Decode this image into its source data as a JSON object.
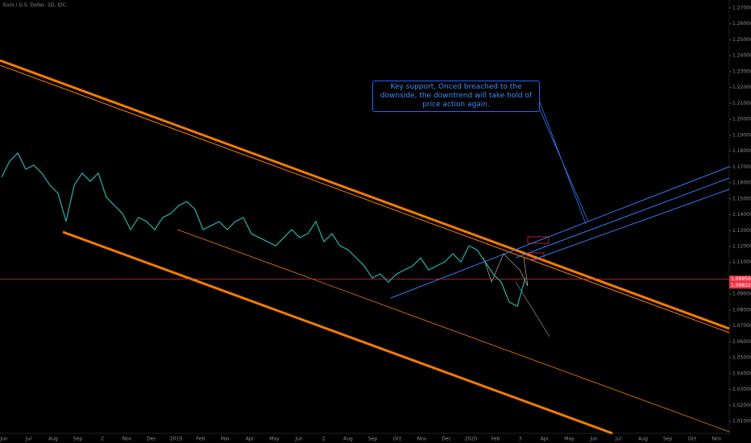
{
  "chart_data": {
    "type": "line",
    "title": "Euro / U.S. Dollar, 1D, IDC",
    "annotation": "Key support, Onced breached to the downside, the downtrend will take hold of price action again.",
    "x_axis_labels": [
      "Jun",
      "Jul",
      "Aug",
      "Sep",
      "2",
      "Nov",
      "Dec",
      "2019",
      "Feb",
      "Mar",
      "Apr",
      "May",
      "Jun",
      "2",
      "Aug",
      "Sep",
      "Oct",
      "Nov",
      "Dec",
      "2020",
      "Feb",
      "3",
      "Apr",
      "May",
      "Jun",
      "Jul",
      "Aug",
      "Sep",
      "Oct",
      "Nov"
    ],
    "series": [
      {
        "name": "EURUSD",
        "color": "#26a69a",
        "values": [
          1.1635,
          1.1737,
          1.1787,
          1.1686,
          1.1711,
          1.1661,
          1.1585,
          1.1534,
          1.1357,
          1.1585,
          1.1661,
          1.161,
          1.1661,
          1.1509,
          1.1458,
          1.1407,
          1.1306,
          1.1382,
          1.1357,
          1.1306,
          1.1382,
          1.1407,
          1.1458,
          1.1483,
          1.1433,
          1.1306,
          1.1331,
          1.1357,
          1.1306,
          1.1357,
          1.1382,
          1.128,
          1.1255,
          1.123,
          1.1204,
          1.1255,
          1.1306,
          1.1255,
          1.128,
          1.1357,
          1.123,
          1.128,
          1.1204,
          1.1179,
          1.1128,
          1.1078,
          1.1002,
          1.1027,
          1.0976,
          1.1027,
          1.1052,
          1.1078,
          1.1128,
          1.1052,
          1.1078,
          1.1103,
          1.1154,
          1.1103,
          1.1204,
          1.1179,
          1.1103,
          1.1027,
          1.0976,
          1.085,
          1.0824,
          1.1002
        ]
      }
    ],
    "price_labels": [
      1.09956,
      1.09832
    ],
    "last_price_color": "#f23645",
    "ylim": [
      1.004,
      1.275
    ],
    "yticks": [
      {
        "value": 1.01,
        "label": "1.01000"
      },
      {
        "value": 1.02,
        "label": "1.02000"
      },
      {
        "value": 1.03,
        "label": "1.03000"
      },
      {
        "value": 1.04,
        "label": "1.04000"
      },
      {
        "value": 1.05,
        "label": "1.05000"
      },
      {
        "value": 1.06,
        "label": "1.06000"
      },
      {
        "value": 1.07,
        "label": "1.07000"
      },
      {
        "value": 1.08,
        "label": "1.08000"
      },
      {
        "value": 1.09,
        "label": "1.09000"
      },
      {
        "value": 1.1,
        "label": "1.10000"
      },
      {
        "value": 1.11,
        "label": "1.11000"
      },
      {
        "value": 1.12,
        "label": "1.12000"
      },
      {
        "value": 1.13,
        "label": "1.13000"
      },
      {
        "value": 1.14,
        "label": "1.14000"
      },
      {
        "value": 1.15,
        "label": "1.15000"
      },
      {
        "value": 1.16,
        "label": "1.16000"
      },
      {
        "value": 1.17,
        "label": "1.17000"
      },
      {
        "value": 1.18,
        "label": "1.18000"
      },
      {
        "value": 1.19,
        "label": "1.19000"
      },
      {
        "value": 1.2,
        "label": "1.20000"
      },
      {
        "value": 1.21,
        "label": "1.21000"
      },
      {
        "value": 1.22,
        "label": "1.22000"
      },
      {
        "value": 1.23,
        "label": "1.23000"
      },
      {
        "value": 1.24,
        "label": "1.24000"
      },
      {
        "value": 1.25,
        "label": "1.25000"
      },
      {
        "value": 1.26,
        "label": "1.26000"
      },
      {
        "value": 1.27,
        "label": "1.27000"
      }
    ],
    "grid": false
  }
}
